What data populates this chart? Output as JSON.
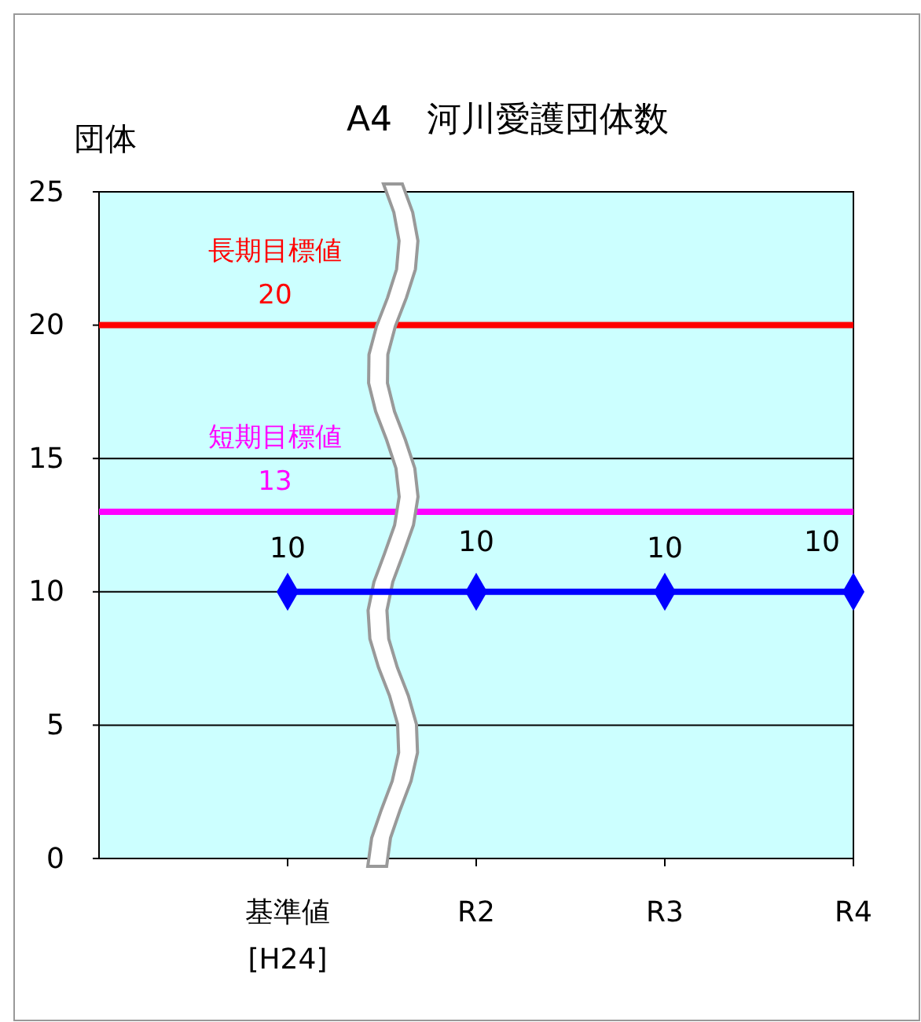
{
  "chart_data": {
    "type": "line",
    "title": "A4　河川愛護団体数",
    "ylabel": "団体",
    "categories": [
      "基準値\n[H24]",
      "R2",
      "R3",
      "R4"
    ],
    "series": [
      {
        "color": "#0000ff",
        "values": [
          10,
          10,
          10,
          10
        ]
      }
    ],
    "ylim": [
      0,
      25
    ],
    "yticks": [
      0,
      5,
      10,
      15,
      20,
      25
    ],
    "grid": "y",
    "marker": "diamond",
    "data_labels": true,
    "ref_lines": [
      {
        "axis": "y",
        "value": 20,
        "label": "長期目標値\n20",
        "color": "#ff0000"
      },
      {
        "axis": "y",
        "value": 13,
        "label": "短期目標値\n13",
        "color": "#ff00ff"
      }
    ]
  }
}
